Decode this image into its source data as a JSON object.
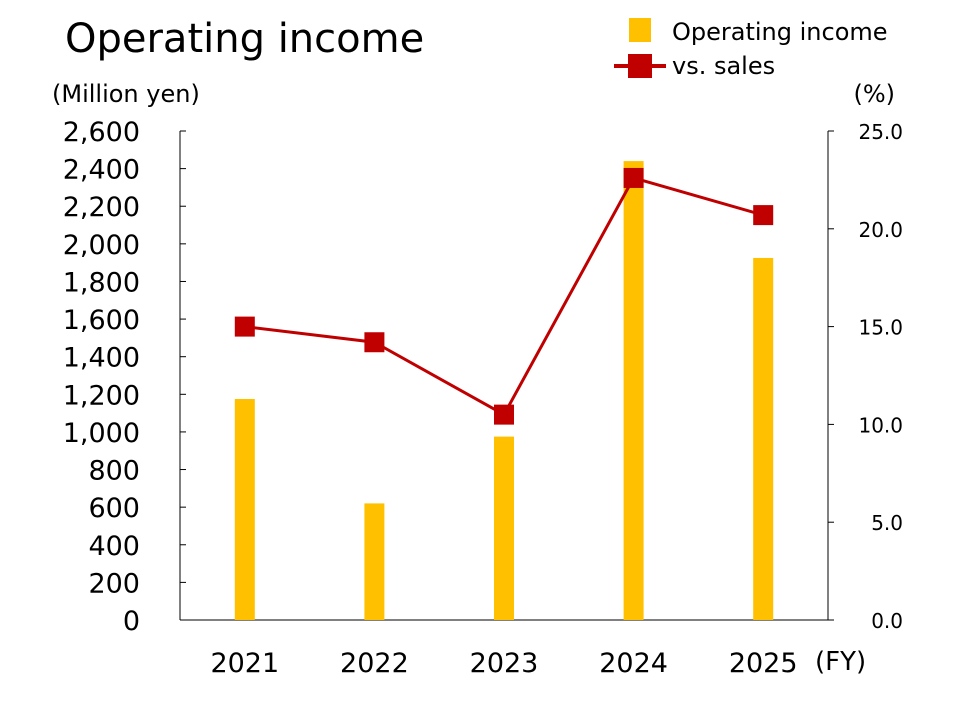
{
  "chart_data": {
    "type": "bar+line",
    "title": "Operating income",
    "categories": [
      "2021",
      "2022",
      "2023",
      "2024",
      "2025"
    ],
    "xlabel": "(FY)",
    "ylabel_left": "(Million yen)",
    "ylabel_right": "(%)",
    "ylim_left": [
      0,
      2600
    ],
    "ylim_right": [
      0,
      25
    ],
    "yticks_left": [
      "0",
      "200",
      "400",
      "600",
      "800",
      "1,000",
      "1,200",
      "1,400",
      "1,600",
      "1,800",
      "2,000",
      "2,200",
      "2,400",
      "2,600"
    ],
    "yticks_right": [
      "0.0",
      "5.0",
      "10.0",
      "15.0",
      "20.0",
      "25.0"
    ],
    "grid": false,
    "legend_position": "top-right",
    "series": [
      {
        "name": "Operating income",
        "type": "bar",
        "axis": "left",
        "color": "#FFC000",
        "values": [
          1175,
          620,
          975,
          2440,
          1925
        ]
      },
      {
        "name": "vs. sales",
        "type": "line",
        "axis": "right",
        "color": "#C00000",
        "values": [
          15.0,
          14.2,
          10.5,
          22.6,
          20.7
        ]
      }
    ]
  }
}
